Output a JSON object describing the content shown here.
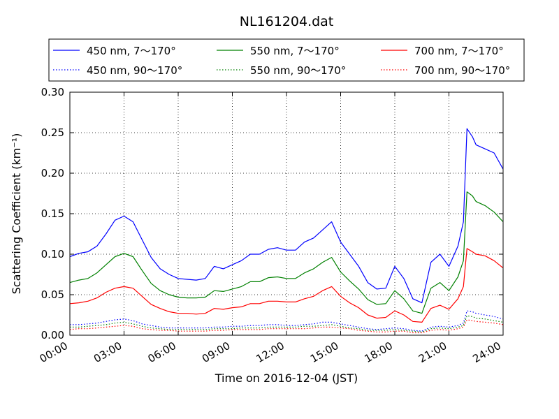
{
  "chart_data": {
    "type": "line",
    "title": "NL161204.dat",
    "xlabel": "Time on 2016-12-04 (JST)",
    "ylabel": "Scattering Coefficient (km⁻¹)",
    "xlim": [
      0,
      24
    ],
    "ylim": [
      0,
      0.3
    ],
    "x_tick_values": [
      0,
      3,
      6,
      9,
      12,
      15,
      18,
      21,
      24
    ],
    "x_tick_labels": [
      "00:00",
      "03:00",
      "06:00",
      "09:00",
      "12:00",
      "15:00",
      "18:00",
      "21:00",
      "24:00"
    ],
    "y_ticks": [
      "0.00",
      "0.05",
      "0.10",
      "0.15",
      "0.20",
      "0.25",
      "0.30"
    ],
    "y_tick_values": [
      0,
      0.05,
      0.1,
      0.15,
      0.2,
      0.25,
      0.3
    ],
    "grid": true,
    "legend_position": "top, above plot",
    "x_hours": [
      0,
      0.5,
      1,
      1.5,
      2,
      2.5,
      3,
      3.5,
      4,
      4.5,
      5,
      5.5,
      6,
      6.5,
      7,
      7.5,
      8,
      8.5,
      9,
      9.5,
      10,
      10.5,
      11,
      11.5,
      12,
      12.5,
      13,
      13.5,
      14,
      14.5,
      15,
      15.5,
      16,
      16.5,
      17,
      17.5,
      18,
      18.5,
      19,
      19.5,
      20,
      20.5,
      21,
      21.5,
      21.8,
      22,
      22.3,
      22.5,
      23,
      23.5,
      24
    ],
    "series": [
      {
        "name": "450 nm, 7～170°",
        "color": "#0000ff",
        "style": "solid",
        "values": [
          0.097,
          0.101,
          0.103,
          0.11,
          0.125,
          0.142,
          0.147,
          0.14,
          0.118,
          0.096,
          0.082,
          0.075,
          0.07,
          0.069,
          0.068,
          0.07,
          0.085,
          0.082,
          0.087,
          0.092,
          0.1,
          0.1,
          0.106,
          0.108,
          0.105,
          0.105,
          0.115,
          0.12,
          0.13,
          0.14,
          0.115,
          0.1,
          0.085,
          0.065,
          0.057,
          0.058,
          0.085,
          0.07,
          0.045,
          0.04,
          0.09,
          0.1,
          0.085,
          0.11,
          0.14,
          0.255,
          0.245,
          0.235,
          0.23,
          0.225,
          0.205
        ]
      },
      {
        "name": "450 nm, 90～170°",
        "color": "#0000ff",
        "style": "dotted",
        "values": [
          0.013,
          0.013,
          0.014,
          0.015,
          0.017,
          0.019,
          0.02,
          0.018,
          0.014,
          0.012,
          0.01,
          0.009,
          0.009,
          0.009,
          0.009,
          0.009,
          0.01,
          0.01,
          0.011,
          0.011,
          0.012,
          0.012,
          0.013,
          0.013,
          0.012,
          0.012,
          0.013,
          0.014,
          0.016,
          0.016,
          0.014,
          0.012,
          0.01,
          0.008,
          0.007,
          0.008,
          0.009,
          0.008,
          0.006,
          0.005,
          0.01,
          0.011,
          0.01,
          0.012,
          0.015,
          0.03,
          0.029,
          0.027,
          0.025,
          0.023,
          0.02
        ]
      },
      {
        "name": "550 nm, 7～170°",
        "color": "#008000",
        "style": "solid",
        "values": [
          0.065,
          0.068,
          0.07,
          0.077,
          0.087,
          0.097,
          0.101,
          0.097,
          0.08,
          0.064,
          0.055,
          0.05,
          0.047,
          0.046,
          0.046,
          0.047,
          0.055,
          0.054,
          0.057,
          0.06,
          0.066,
          0.066,
          0.071,
          0.072,
          0.07,
          0.07,
          0.077,
          0.082,
          0.09,
          0.096,
          0.078,
          0.067,
          0.057,
          0.044,
          0.038,
          0.039,
          0.055,
          0.045,
          0.03,
          0.027,
          0.058,
          0.065,
          0.055,
          0.072,
          0.092,
          0.177,
          0.172,
          0.165,
          0.16,
          0.152,
          0.14
        ]
      },
      {
        "name": "550 nm, 90～170°",
        "color": "#008000",
        "style": "dotted",
        "values": [
          0.01,
          0.01,
          0.011,
          0.012,
          0.013,
          0.015,
          0.016,
          0.014,
          0.011,
          0.009,
          0.008,
          0.007,
          0.007,
          0.007,
          0.007,
          0.007,
          0.008,
          0.008,
          0.008,
          0.009,
          0.009,
          0.009,
          0.01,
          0.01,
          0.01,
          0.01,
          0.011,
          0.011,
          0.012,
          0.013,
          0.011,
          0.009,
          0.008,
          0.006,
          0.006,
          0.006,
          0.007,
          0.006,
          0.005,
          0.004,
          0.008,
          0.009,
          0.008,
          0.01,
          0.012,
          0.024,
          0.023,
          0.021,
          0.02,
          0.018,
          0.016
        ]
      },
      {
        "name": "700 nm, 7～170°",
        "color": "#ff0000",
        "style": "solid",
        "values": [
          0.039,
          0.04,
          0.042,
          0.046,
          0.053,
          0.058,
          0.06,
          0.058,
          0.048,
          0.038,
          0.033,
          0.029,
          0.027,
          0.027,
          0.026,
          0.027,
          0.033,
          0.032,
          0.034,
          0.035,
          0.039,
          0.039,
          0.042,
          0.042,
          0.041,
          0.041,
          0.045,
          0.048,
          0.055,
          0.06,
          0.048,
          0.04,
          0.034,
          0.025,
          0.021,
          0.022,
          0.03,
          0.025,
          0.017,
          0.016,
          0.033,
          0.037,
          0.032,
          0.045,
          0.06,
          0.107,
          0.103,
          0.1,
          0.098,
          0.092,
          0.083
        ]
      },
      {
        "name": "700 nm, 90～170°",
        "color": "#ff0000",
        "style": "dotted",
        "values": [
          0.007,
          0.008,
          0.008,
          0.009,
          0.01,
          0.011,
          0.012,
          0.011,
          0.008,
          0.007,
          0.006,
          0.006,
          0.005,
          0.005,
          0.005,
          0.005,
          0.006,
          0.006,
          0.007,
          0.007,
          0.007,
          0.007,
          0.008,
          0.008,
          0.008,
          0.008,
          0.008,
          0.009,
          0.01,
          0.01,
          0.009,
          0.008,
          0.006,
          0.005,
          0.004,
          0.004,
          0.005,
          0.005,
          0.003,
          0.003,
          0.006,
          0.007,
          0.006,
          0.008,
          0.01,
          0.019,
          0.018,
          0.017,
          0.016,
          0.015,
          0.013
        ]
      }
    ]
  }
}
